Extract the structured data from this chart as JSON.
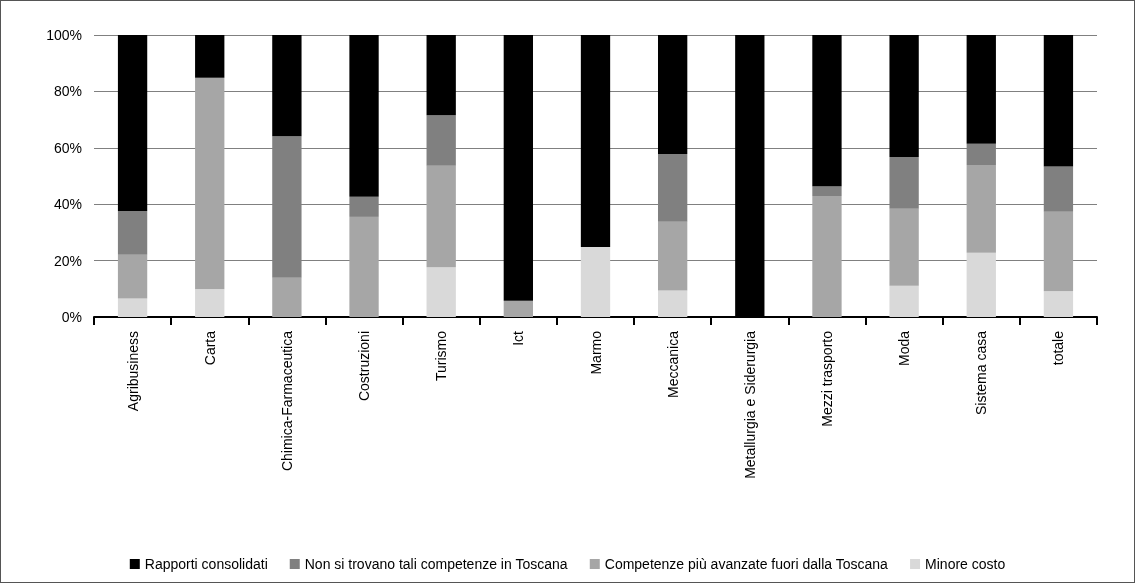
{
  "chart_data": {
    "type": "bar",
    "stacked": true,
    "categories": [
      "Agribusiness",
      "Carta",
      "Chimica-Farmaceutica",
      "Costruzioni",
      "Turismo",
      "Ict",
      "Marmo",
      "Meccanica",
      "Metallurgia e Siderurgia",
      "Mezzi trasporto",
      "Moda",
      "Sistema casa",
      "totale"
    ],
    "series": [
      {
        "name": "Minore costo",
        "color": "#d9d9d9",
        "values": [
          6.6,
          9.8,
          0,
          0,
          17.6,
          0,
          24.8,
          9.4,
          0,
          0,
          11.1,
          22.8,
          9.1
        ]
      },
      {
        "name": "Competenze più avanzate fuori dalla Toscana",
        "color": "#a6a6a6",
        "values": [
          15.5,
          75,
          13.9,
          35.5,
          36,
          5.8,
          0,
          24.4,
          0,
          42.9,
          27.3,
          31.1,
          28.2
        ]
      },
      {
        "name": "Non si trovano tali competenze in Toscana",
        "color": "#808080",
        "values": [
          15.5,
          0,
          50.2,
          7.1,
          17.9,
          0,
          0,
          24,
          0,
          3.5,
          18.3,
          7.5,
          16.1
        ]
      },
      {
        "name": "Rapporti consolidati",
        "color": "#000000",
        "values": [
          62.4,
          15.2,
          35.9,
          57.4,
          28.5,
          94.2,
          75.2,
          42.2,
          100,
          53.6,
          43.3,
          38.6,
          46.6
        ]
      }
    ],
    "ylim": [
      0,
      100
    ],
    "yticks": [
      {
        "value": 0,
        "label": "0%"
      },
      {
        "value": 20,
        "label": "20%"
      },
      {
        "value": 40,
        "label": "40%"
      },
      {
        "value": 60,
        "label": "60%"
      },
      {
        "value": 80,
        "label": "80%"
      },
      {
        "value": 100,
        "label": "100%"
      }
    ],
    "grid": "y",
    "legend": "bottom"
  }
}
